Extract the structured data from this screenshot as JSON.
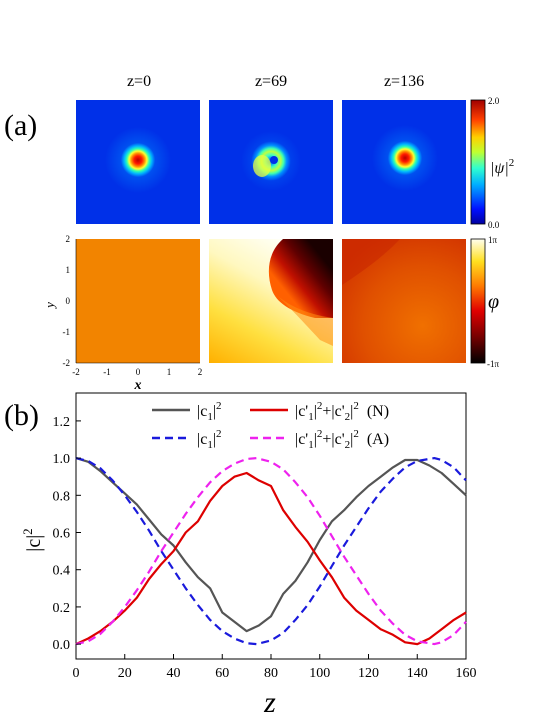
{
  "panel_a": {
    "label": "(a)",
    "columns": [
      "z=0",
      "z=69",
      "z=136"
    ],
    "intensity_colorbar": {
      "min_label": "0.0",
      "max_label": "2.0",
      "label": "|ψ|",
      "label_sup": "2"
    },
    "phase_colorbar": {
      "min_label": "-1π",
      "max_label": "1π",
      "label": "φ"
    },
    "y_axis": {
      "label": "y",
      "ticks": [
        "2",
        "1",
        "0",
        "-1",
        "-2"
      ]
    },
    "x_axis": {
      "label": "x",
      "ticks": [
        "-2",
        "-1",
        "0",
        "1",
        "2"
      ]
    }
  },
  "chart_data": {
    "type": "line",
    "panel_label": "(b)",
    "xlabel": "z",
    "ylabel": "|c|",
    "ylabel_sup": "2",
    "xlim": [
      0,
      160
    ],
    "ylim": [
      -0.08,
      1.35
    ],
    "xticks": [
      0,
      20,
      40,
      60,
      80,
      100,
      120,
      140,
      160
    ],
    "yticks": [
      0.0,
      0.2,
      0.4,
      0.6,
      0.8,
      1.0,
      1.2
    ],
    "legend_position": "top",
    "series": [
      {
        "name": "|c1|2 (N)",
        "color": "#555555",
        "dash": "solid",
        "x": [
          0,
          5,
          10,
          15,
          20,
          25,
          30,
          35,
          40,
          45,
          50,
          55,
          60,
          65,
          70,
          75,
          80,
          85,
          90,
          95,
          100,
          105,
          110,
          115,
          120,
          125,
          130,
          135,
          140,
          145,
          150,
          155,
          160
        ],
        "y": [
          1.0,
          0.98,
          0.93,
          0.87,
          0.81,
          0.75,
          0.67,
          0.59,
          0.53,
          0.44,
          0.36,
          0.3,
          0.17,
          0.12,
          0.07,
          0.1,
          0.15,
          0.27,
          0.34,
          0.44,
          0.56,
          0.66,
          0.72,
          0.79,
          0.85,
          0.9,
          0.95,
          0.99,
          0.99,
          0.96,
          0.92,
          0.86,
          0.8
        ]
      },
      {
        "name": "|c'1|2+|c'2|2 (N)",
        "color": "#dd0000",
        "dash": "solid",
        "x": [
          0,
          5,
          10,
          15,
          20,
          25,
          30,
          35,
          40,
          45,
          50,
          55,
          60,
          65,
          70,
          75,
          80,
          85,
          90,
          95,
          100,
          105,
          110,
          115,
          120,
          125,
          130,
          135,
          140,
          145,
          150,
          155,
          160
        ],
        "y": [
          0.0,
          0.03,
          0.07,
          0.12,
          0.18,
          0.25,
          0.35,
          0.43,
          0.5,
          0.6,
          0.66,
          0.77,
          0.85,
          0.9,
          0.92,
          0.88,
          0.85,
          0.72,
          0.63,
          0.55,
          0.45,
          0.36,
          0.25,
          0.18,
          0.13,
          0.08,
          0.05,
          0.01,
          0.0,
          0.03,
          0.08,
          0.13,
          0.17
        ]
      },
      {
        "name": "|c1|2 (A)",
        "color": "#1a1adc",
        "dash": "dashed",
        "x": [
          0,
          5,
          10,
          15,
          20,
          25,
          30,
          35,
          40,
          45,
          50,
          55,
          60,
          65,
          70,
          74,
          80,
          85,
          90,
          95,
          100,
          105,
          110,
          115,
          120,
          125,
          130,
          135,
          140,
          147,
          150,
          155,
          160
        ],
        "y": [
          1.0,
          0.985,
          0.945,
          0.88,
          0.8,
          0.71,
          0.61,
          0.5,
          0.4,
          0.3,
          0.21,
          0.13,
          0.07,
          0.03,
          0.005,
          0.0,
          0.02,
          0.06,
          0.13,
          0.21,
          0.31,
          0.42,
          0.53,
          0.63,
          0.73,
          0.82,
          0.89,
          0.95,
          0.985,
          1.0,
          0.99,
          0.95,
          0.88
        ]
      },
      {
        "name": "|c'1|2+|c'2|2 (A)",
        "color": "#ee22ee",
        "dash": "dashed",
        "x": [
          0,
          5,
          10,
          15,
          20,
          25,
          30,
          35,
          40,
          45,
          50,
          55,
          60,
          65,
          70,
          74,
          80,
          85,
          90,
          95,
          100,
          105,
          110,
          115,
          120,
          125,
          130,
          135,
          140,
          147,
          150,
          155,
          160
        ],
        "y": [
          0.0,
          0.015,
          0.055,
          0.12,
          0.2,
          0.29,
          0.39,
          0.5,
          0.6,
          0.7,
          0.79,
          0.87,
          0.93,
          0.97,
          0.995,
          1.0,
          0.98,
          0.94,
          0.87,
          0.79,
          0.69,
          0.58,
          0.47,
          0.37,
          0.27,
          0.18,
          0.11,
          0.05,
          0.015,
          0.0,
          0.01,
          0.05,
          0.12
        ]
      }
    ]
  },
  "legend": {
    "row1": [
      {
        "base": "|c",
        "sub": "1",
        "mid": "|",
        "sup": "2",
        "suffix": "",
        "color": "#555555",
        "dash": "solid"
      },
      {
        "base": "|c'",
        "sub": "1",
        "mid": "|",
        "sup": "2",
        "base2": "+|c'",
        "sub2": "2",
        "mid2": "|",
        "sup2": "2",
        "suffix": "  (N)",
        "color": "#dd0000",
        "dash": "solid"
      }
    ],
    "row2": [
      {
        "base": "|c",
        "sub": "1",
        "mid": "|",
        "sup": "2",
        "suffix": "",
        "color": "#1a1adc",
        "dash": "dashed"
      },
      {
        "base": "|c'",
        "sub": "1",
        "mid": "|",
        "sup": "2",
        "base2": "+|c'",
        "sub2": "2",
        "mid2": "|",
        "sup2": "2",
        "suffix": "  (A)",
        "color": "#ee22ee",
        "dash": "dashed"
      }
    ]
  }
}
